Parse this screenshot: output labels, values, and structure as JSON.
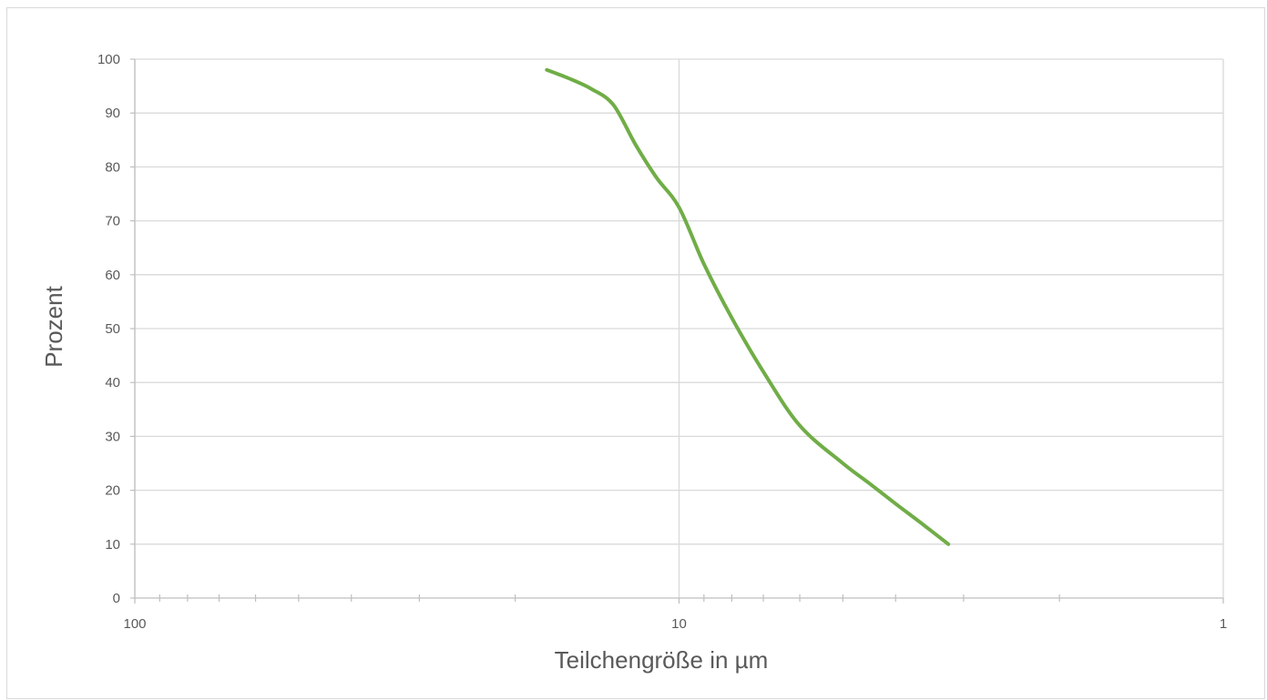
{
  "chart_data": {
    "type": "line",
    "title": "",
    "xlabel": "Teilchengröße in µm",
    "ylabel": "Prozent",
    "x_scale": "log",
    "x_reversed": true,
    "xlim": [
      100,
      1
    ],
    "ylim": [
      0,
      100
    ],
    "x_ticks": [
      100,
      10,
      1
    ],
    "x_tick_labels": [
      "100",
      "10",
      "1"
    ],
    "x_minor_ticks": [
      90,
      80,
      70,
      60,
      50,
      40,
      30,
      20,
      9,
      8,
      7,
      6,
      5,
      4,
      3,
      2
    ],
    "y_ticks": [
      0,
      10,
      20,
      30,
      40,
      50,
      60,
      70,
      80,
      90,
      100
    ],
    "y_tick_labels": [
      "0",
      "10",
      "20",
      "30",
      "40",
      "50",
      "60",
      "70",
      "80",
      "90",
      "100"
    ],
    "grid": {
      "horizontal": true,
      "vertical_major": true
    },
    "legend": "none",
    "series": [
      {
        "color": "#70ad47",
        "x": [
          17.5,
          16,
          14.5,
          13.2,
          12,
          11,
          10,
          9,
          8,
          7,
          6,
          5,
          4.5,
          4,
          3.6,
          3.2
        ],
        "y": [
          98,
          96.5,
          94.5,
          91.5,
          84,
          78,
          72.5,
          62,
          52,
          42,
          32,
          25,
          21.5,
          17.5,
          14,
          10
        ]
      }
    ]
  }
}
